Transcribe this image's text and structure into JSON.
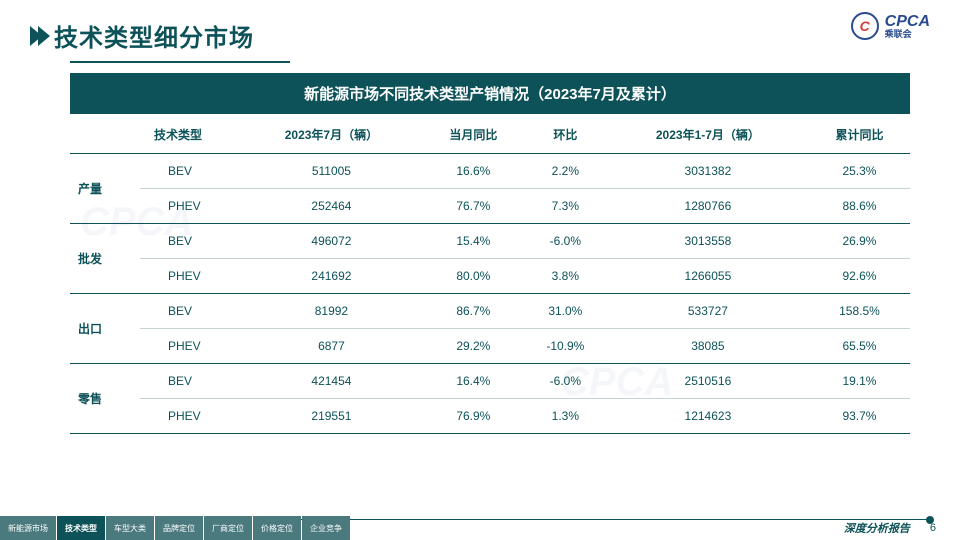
{
  "header": {
    "title": "技术类型细分市场",
    "logo_main": "CPCA",
    "logo_sub": "乘联会",
    "logo_icon_text": "C"
  },
  "table": {
    "title": "新能源市场不同技术类型产销情况（2023年7月及累计）",
    "columns": [
      "技术类型",
      "2023年7月（辆）",
      "当月同比",
      "环比",
      "2023年1-7月（辆）",
      "累计同比"
    ],
    "groups": [
      {
        "category": "产量",
        "rows": [
          [
            "BEV",
            "511005",
            "16.6%",
            "2.2%",
            "3031382",
            "25.3%"
          ],
          [
            "PHEV",
            "252464",
            "76.7%",
            "7.3%",
            "1280766",
            "88.6%"
          ]
        ]
      },
      {
        "category": "批发",
        "rows": [
          [
            "BEV",
            "496072",
            "15.4%",
            "-6.0%",
            "3013558",
            "26.9%"
          ],
          [
            "PHEV",
            "241692",
            "80.0%",
            "3.8%",
            "1266055",
            "92.6%"
          ]
        ]
      },
      {
        "category": "出口",
        "rows": [
          [
            "BEV",
            "81992",
            "86.7%",
            "31.0%",
            "533727",
            "158.5%"
          ],
          [
            "PHEV",
            "6877",
            "29.2%",
            "-10.9%",
            "38085",
            "65.5%"
          ]
        ]
      },
      {
        "category": "零售",
        "rows": [
          [
            "BEV",
            "421454",
            "16.4%",
            "-6.0%",
            "2510516",
            "19.1%"
          ],
          [
            "PHEV",
            "219551",
            "76.9%",
            "1.3%",
            "1214623",
            "93.7%"
          ]
        ]
      }
    ]
  },
  "footer": {
    "tabs": [
      "新能源市场",
      "技术类型",
      "车型大类",
      "品牌定位",
      "厂商定位",
      "价格定位",
      "企业竞争"
    ],
    "active_tab_index": 1,
    "report_label": "深度分析报告",
    "page_number": "6"
  },
  "colors": {
    "primary": "#0d5258",
    "tab_inactive": "#4a7a7e",
    "logo_blue": "#2a4b8d",
    "logo_red": "#d43c3c"
  }
}
